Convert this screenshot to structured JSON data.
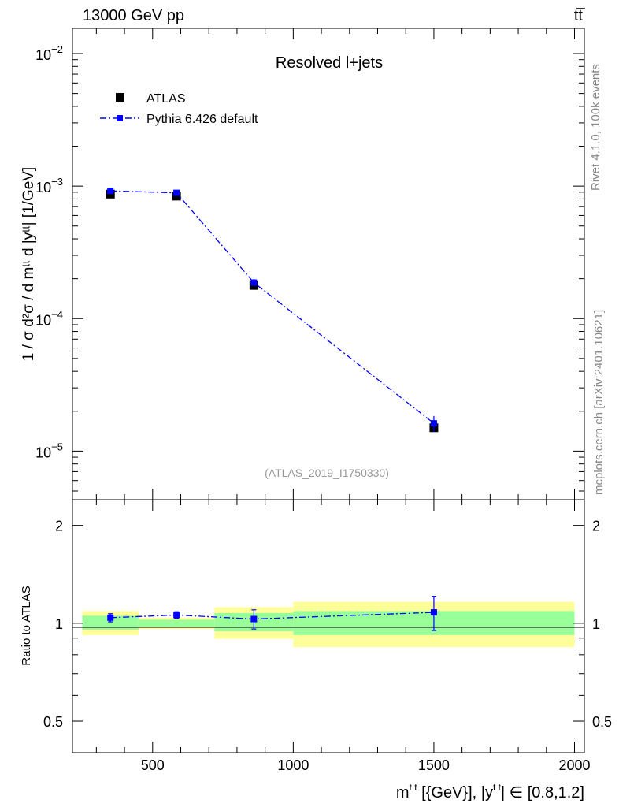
{
  "header": {
    "energy_label": "13000 GeV pp",
    "process_label": "tt̅"
  },
  "side_labels": {
    "rivet": "Rivet 4.1.0,  100k events",
    "mcplots": "mcplots.cern.ch [arXiv:2401.10621]"
  },
  "chart_data": [
    {
      "type": "scatter",
      "panel": "main",
      "title": "Resolved l+jets",
      "analysis_id": "(ATLAS_2019_I1750330)",
      "ylabel": "1 / σ d²σ / d mᵗᵗ d |yᵗᵗ| [1/GeV]",
      "yscale": "log",
      "ylim": [
        4.3e-06,
        0.0155
      ],
      "xlim": [
        215,
        2035
      ],
      "ytick_labels": [
        {
          "value": 1e-05,
          "mantissa": "10",
          "exponent": "−5"
        },
        {
          "value": 0.0001,
          "mantissa": "10",
          "exponent": "−4"
        },
        {
          "value": 0.001,
          "mantissa": "10",
          "exponent": "−3"
        },
        {
          "value": 0.01,
          "mantissa": "10",
          "exponent": "−2"
        }
      ],
      "legend": {
        "placement": "top-left",
        "entries": [
          "ATLAS",
          "Pythia 6.426 default"
        ]
      },
      "series": [
        {
          "name": "ATLAS",
          "color": "#000000",
          "marker": "square",
          "points": [
            {
              "x": 350,
              "y": 0.00087
            },
            {
              "x": 585,
              "y": 0.00084
            },
            {
              "x": 860,
              "y": 0.000178
            },
            {
              "x": 1500,
              "y": 1.5e-05
            }
          ]
        },
        {
          "name": "Pythia 6.426 default",
          "color": "#0000ff",
          "marker": "square",
          "line": "dash-dot",
          "points": [
            {
              "x": 350,
              "y": 0.00092,
              "err": 3e-05
            },
            {
              "x": 585,
              "y": 0.00089,
              "err": 3e-05
            },
            {
              "x": 860,
              "y": 0.000187,
              "err": 1.2e-05
            },
            {
              "x": 1500,
              "y": 1.62e-05,
              "err": 2.2e-06
            }
          ]
        }
      ]
    },
    {
      "type": "scatter",
      "panel": "ratio",
      "ylabel": "Ratio to ATLAS",
      "xlabel": "mᵗᵗ [{GeV}], |yᵗᵗ| ∈ [0.8,1.2]",
      "xlabel_parts": {
        "m": "m",
        "m_sup": "t t̅",
        "unit": " [{GeV}], |y",
        "y_sup": "t t̅",
        "range": "| ∈ [0.8,1.2]"
      },
      "yscale": "log",
      "ylim": [
        0.4,
        2.4
      ],
      "xlim": [
        215,
        2035
      ],
      "yticks": [
        0.5,
        1,
        2
      ],
      "ytick_labels": [
        "0.5",
        "1",
        "2"
      ],
      "xticks": [
        500,
        1000,
        1500,
        2000
      ],
      "xtick_labels": [
        "500",
        "1000",
        "1500",
        "2000"
      ],
      "uncertainty_bands": [
        {
          "x": [
            250,
            450
          ],
          "inner": [
            0.955,
            1.055
          ],
          "outer": [
            0.92,
            1.09
          ]
        },
        {
          "x": [
            450,
            720
          ],
          "inner": [
            0.975,
            1.025
          ],
          "outer": [
            0.96,
            1.04
          ]
        },
        {
          "x": [
            720,
            1000
          ],
          "inner": [
            0.945,
            1.075
          ],
          "outer": [
            0.895,
            1.12
          ]
        },
        {
          "x": [
            1000,
            2000
          ],
          "inner": [
            0.92,
            1.09
          ],
          "outer": [
            0.845,
            1.165
          ]
        }
      ],
      "series": [
        {
          "name": "Pythia 6.426 default",
          "color": "#0000ff",
          "line": "dash-dot",
          "points": [
            {
              "x": 350,
              "y": 1.04,
              "err": 0.03
            },
            {
              "x": 585,
              "y": 1.06,
              "err": 0.025
            },
            {
              "x": 860,
              "y": 1.03,
              "err": 0.07
            },
            {
              "x": 1500,
              "y": 1.08,
              "err": 0.13
            }
          ]
        }
      ]
    }
  ]
}
